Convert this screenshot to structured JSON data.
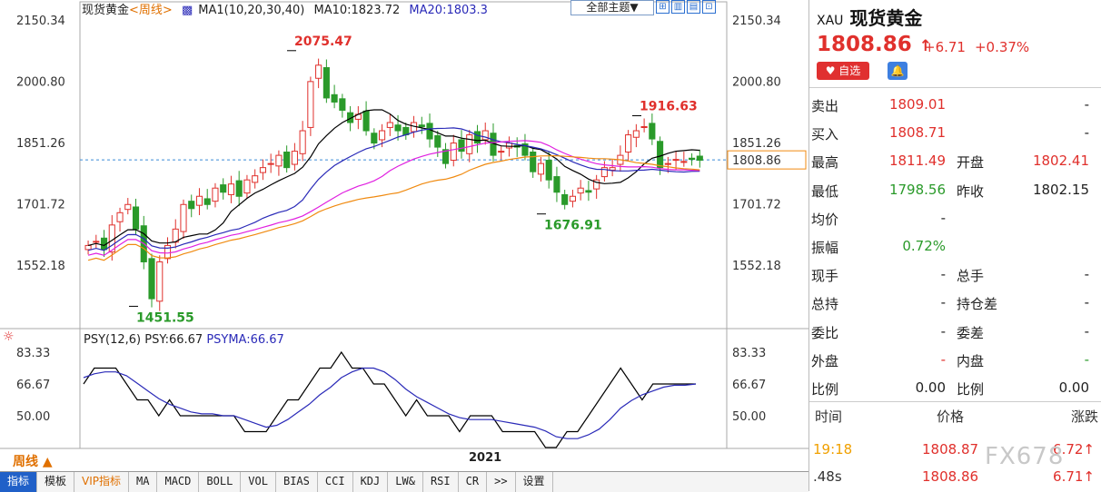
{
  "chart_header": {
    "name": "现货黄金",
    "period_link": "<周线>",
    "ma_params": "MA1(10,20,30,40)",
    "ma10": "MA10:1823.72",
    "ma20": "MA20:1803.3",
    "theme_btn": "全部主题▼"
  },
  "toolbar_icons": [
    "grid-icon",
    "zoom-in-icon",
    "zoom-out-icon",
    "fit-icon"
  ],
  "period_label": "周线 ▲",
  "year_label": "2021",
  "indicator_header": {
    "name": "PSY(12,6)",
    "psy": "PSY:66.67",
    "psyma": "PSYMA:66.67"
  },
  "toolbar": [
    "指标",
    "模板",
    "VIP指标",
    "MA",
    "MACD",
    "BOLL",
    "VOL",
    "BIAS",
    "CCI",
    "KDJ",
    "LW&",
    "RSI",
    "CR",
    ">>",
    "设置"
  ],
  "chart_data": [
    {
      "type": "candlestick",
      "title": "现货黄金",
      "yticks": [
        "2150.34",
        "2000.80",
        "1851.26",
        "1701.72",
        "1552.18"
      ],
      "ylim": [
        1400,
        2200
      ],
      "current_price_tag": "1808.86",
      "annotations": [
        {
          "text": "2075.47",
          "value": 2075.47,
          "kind": "high"
        },
        {
          "text": "1916.63",
          "value": 1916.63,
          "kind": "high"
        },
        {
          "text": "1676.91",
          "value": 1676.91,
          "kind": "low"
        },
        {
          "text": "1451.55",
          "value": 1451.55,
          "kind": "low"
        }
      ],
      "series": [
        {
          "name": "MA10",
          "color": "#000000"
        },
        {
          "name": "MA20",
          "color": "#2a2ab8"
        },
        {
          "name": "MA30",
          "color": "#e020e0"
        },
        {
          "name": "MA40",
          "color": "#f08a10"
        }
      ]
    },
    {
      "type": "line",
      "title": "PSY(12,6)",
      "yticks": [
        "83.33",
        "66.67",
        "50.00"
      ],
      "ylim": [
        30,
        90
      ],
      "series": [
        {
          "name": "PSY",
          "color": "#000000",
          "values": [
            66.67,
            75,
            75,
            75,
            66.67,
            58.33,
            58.33,
            50,
            58.33,
            50,
            50,
            50,
            50,
            50,
            50,
            41.67,
            41.67,
            41.67,
            50,
            58.33,
            58.33,
            66.67,
            75,
            75,
            83.33,
            75,
            75,
            66.67,
            66.67,
            58.33,
            50,
            58.33,
            50,
            50,
            50,
            41.67,
            50,
            50,
            50,
            41.67,
            41.67,
            41.67,
            41.67,
            33.33,
            33.33,
            41.67,
            41.67,
            50,
            58.33,
            66.67,
            75,
            66.67,
            58.33,
            66.67,
            66.67,
            66.67,
            66.67,
            66.67
          ]
        },
        {
          "name": "PSYMA",
          "color": "#2a2ab8",
          "values": [
            70,
            72,
            73,
            73,
            71,
            67,
            63,
            59,
            56,
            54,
            52,
            51,
            51,
            50,
            50,
            48,
            46,
            44,
            45,
            48,
            52,
            56,
            61,
            65,
            70,
            73,
            75,
            75,
            73,
            69,
            64,
            60,
            57,
            54,
            51,
            49,
            48,
            48,
            48,
            47,
            46,
            45,
            44,
            42,
            39,
            38,
            38,
            40,
            43,
            48,
            54,
            58,
            61,
            63,
            65,
            66,
            66,
            66.67
          ]
        }
      ]
    }
  ],
  "quote": {
    "symbol_code": "XAU",
    "symbol_name": "现货黄金",
    "price": "1808.86",
    "arrow": "↑",
    "change": "+6.71",
    "change_pct": "+0.37%",
    "fav_label": "♥ 自选",
    "rows": [
      {
        "l1": "卖出",
        "v1": "1809.01",
        "l2": "",
        "v2": "-"
      },
      {
        "l1": "买入",
        "v1": "1808.71",
        "l2": "",
        "v2": "-"
      },
      {
        "l1": "最高",
        "v1": "1811.49",
        "l2": "开盘",
        "v2": "1802.41"
      },
      {
        "l1": "最低",
        "v1": "1798.56",
        "l2": "昨收",
        "v2": "1802.15"
      },
      {
        "l1": "均价",
        "v1": "-",
        "l2": "",
        "v2": ""
      },
      {
        "l1": "振幅",
        "v1": "0.72%",
        "l2": "",
        "v2": ""
      },
      {
        "l1": "现手",
        "v1": "-",
        "l2": "总手",
        "v2": "-"
      },
      {
        "l1": "总持",
        "v1": "-",
        "l2": "持仓差",
        "v2": "-"
      },
      {
        "l1": "委比",
        "v1": "-",
        "l2": "委差",
        "v2": "-"
      },
      {
        "l1": "外盘",
        "v1": "-",
        "l2": "内盘",
        "v2": "-"
      },
      {
        "l1": "比例",
        "v1": "0.00",
        "l2": "比例",
        "v2": "0.00"
      }
    ],
    "trade_headers": [
      "时间",
      "价格",
      "涨跌"
    ],
    "trades": [
      {
        "time": "19:18",
        "price": "1808.87",
        "chg": "6.72↑"
      },
      {
        "time": ".48s",
        "price": "1808.86",
        "chg": "6.71↑"
      }
    ],
    "watermark": "FX678"
  },
  "colors": {
    "up": "#e0302c",
    "down": "#2a9a2a",
    "accent": "#2060c8"
  }
}
